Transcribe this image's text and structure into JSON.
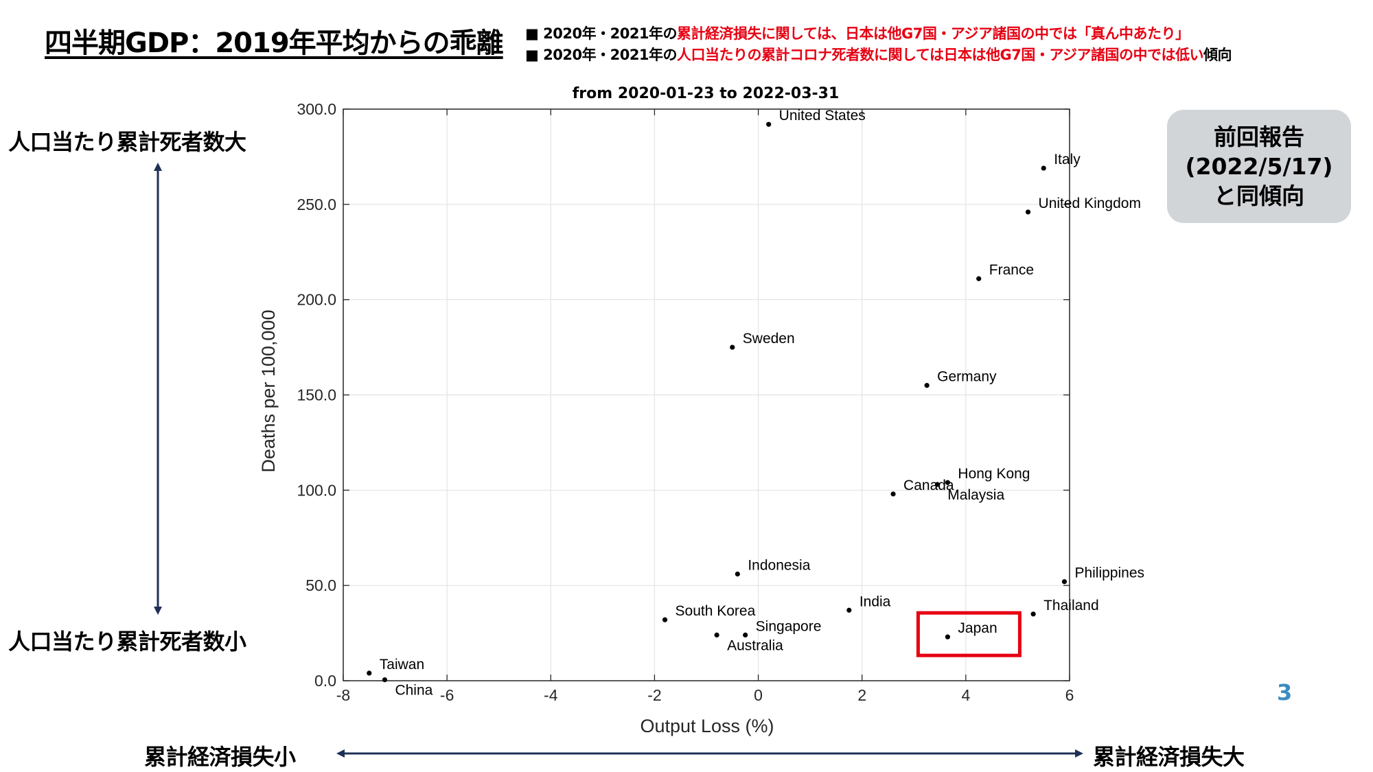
{
  "slide": {
    "title": "四半期GDP：2019年平均からの乖離",
    "bullets": [
      {
        "prefix": "■ 2020年・2021年の",
        "highlight": "累計経済損失に関しては、日本は他G7国・アジア諸国の中では「真ん中あたり」",
        "suffix": ""
      },
      {
        "prefix": "■ 2020年・2021年の",
        "highlight": "人口当たりの累計コロナ死者数に関しては日本は他G7国・アジア諸国の中では低い",
        "suffix": "傾向"
      }
    ],
    "y_side_top": "人口当たり累計死者数大",
    "y_side_bottom": "人口当たり累計死者数小",
    "x_side_left": "累計経済損失小",
    "x_side_right": "累計経済損失大",
    "report_line1": "前回報告",
    "report_line2": "(2022/5/17)",
    "report_line3": "と同傾向",
    "page_number": "3",
    "colors": {
      "highlight": "#e60012",
      "arrow": "#1f3057",
      "box": "#d2d5d8",
      "page_number": "#3c8cc0",
      "frame": "#e60012"
    }
  },
  "chart_data": {
    "type": "scatter",
    "title": "from 2020-01-23 to 2022-03-31",
    "xlabel": "Output Loss (%)",
    "ylabel": "Deaths per 100,000",
    "xlim": [
      -8,
      6
    ],
    "ylim": [
      0,
      300
    ],
    "xticks": [
      -8,
      -6,
      -4,
      -2,
      0,
      2,
      4,
      6
    ],
    "xtick_labels": [
      "-8",
      "-6",
      "-4",
      "-2",
      "0",
      "2",
      "4",
      "6"
    ],
    "yticks": [
      0,
      50,
      100,
      150,
      200,
      250,
      300
    ],
    "ytick_labels": [
      "0.0",
      "50.0",
      "100.0",
      "150.0",
      "200.0",
      "250.0",
      "300.0"
    ],
    "grid": true,
    "highlight": "Japan",
    "points": [
      {
        "label": "United States",
        "x": 0.2,
        "y": 292
      },
      {
        "label": "Italy",
        "x": 5.5,
        "y": 269
      },
      {
        "label": "United Kingdom",
        "x": 5.2,
        "y": 246
      },
      {
        "label": "France",
        "x": 4.25,
        "y": 211
      },
      {
        "label": "Sweden",
        "x": -0.5,
        "y": 175
      },
      {
        "label": "Germany",
        "x": 3.25,
        "y": 155
      },
      {
        "label": "Hong Kong",
        "x": 3.65,
        "y": 104
      },
      {
        "label": "Malaysia",
        "x": 3.45,
        "y": 103
      },
      {
        "label": "Canada",
        "x": 2.6,
        "y": 98
      },
      {
        "label": "Indonesia",
        "x": -0.4,
        "y": 56
      },
      {
        "label": "Philippines",
        "x": 5.9,
        "y": 52
      },
      {
        "label": "India",
        "x": 1.75,
        "y": 37
      },
      {
        "label": "Thailand",
        "x": 5.3,
        "y": 35
      },
      {
        "label": "South Korea",
        "x": -1.8,
        "y": 32
      },
      {
        "label": "Singapore",
        "x": -0.25,
        "y": 24
      },
      {
        "label": "Australia",
        "x": -0.8,
        "y": 24
      },
      {
        "label": "Japan",
        "x": 3.65,
        "y": 23
      },
      {
        "label": "Taiwan",
        "x": -7.5,
        "y": 4
      },
      {
        "label": "China",
        "x": -7.2,
        "y": 0.5
      }
    ]
  }
}
